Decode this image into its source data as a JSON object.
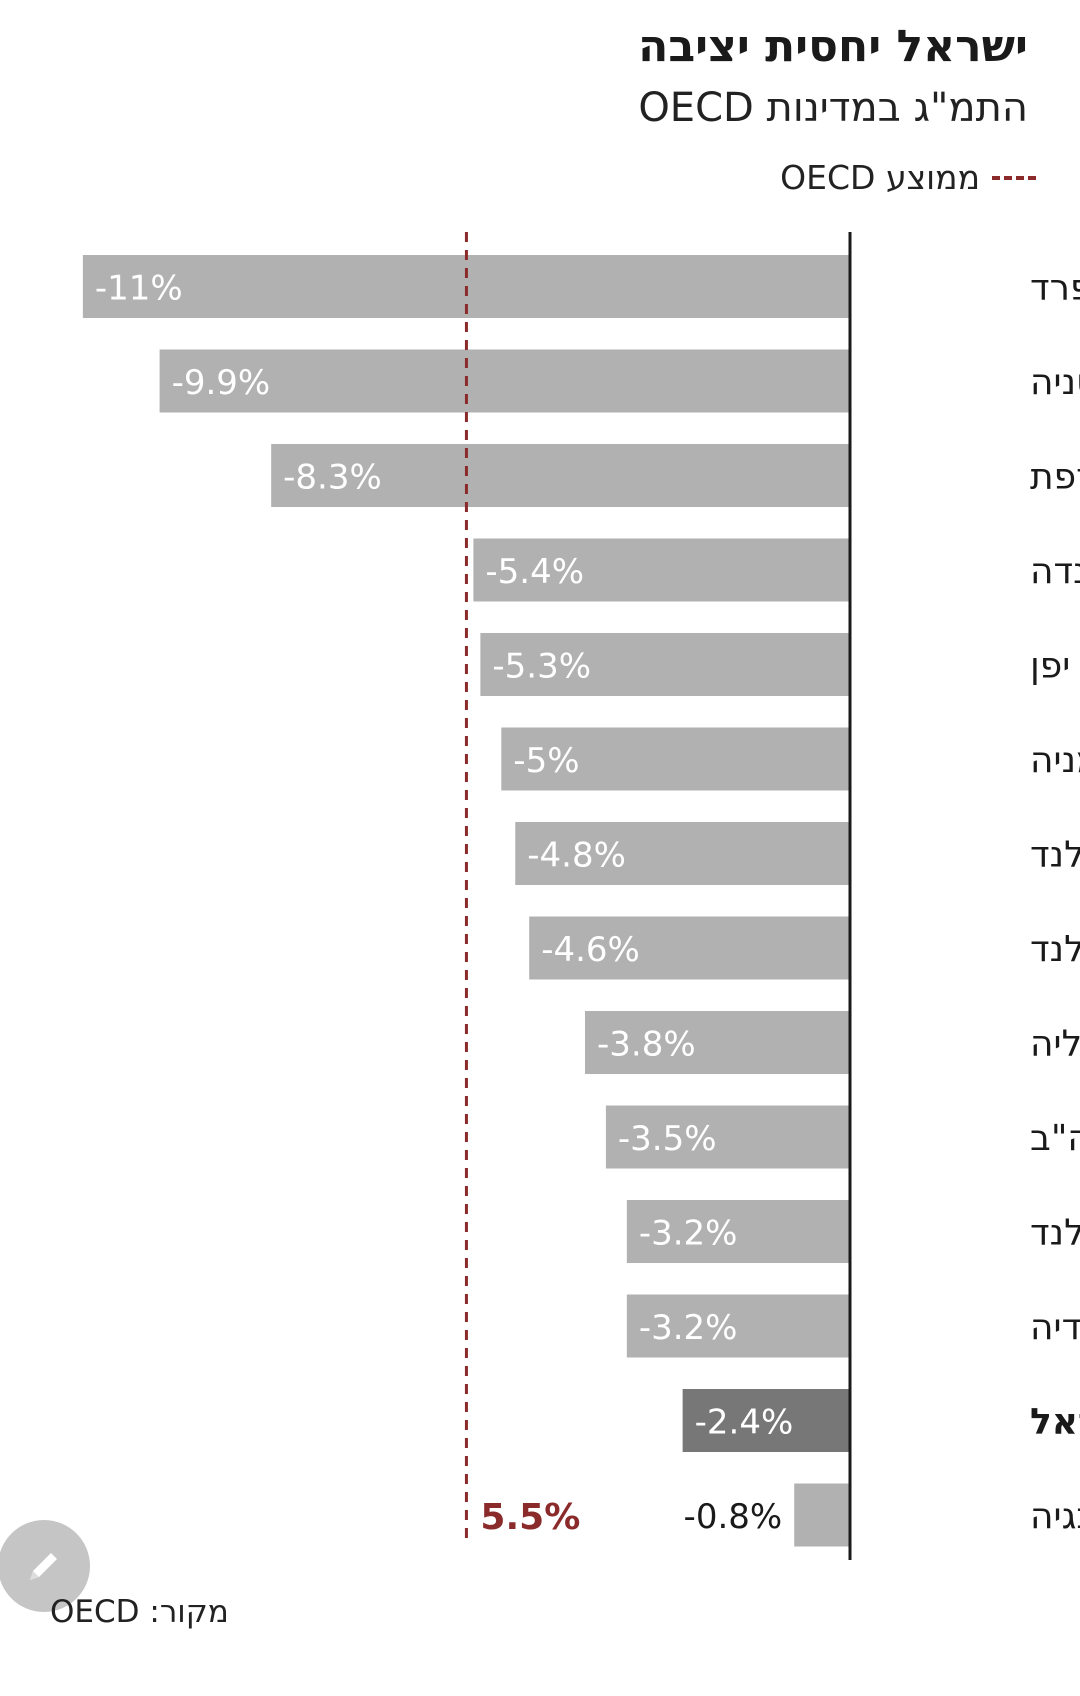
{
  "header": {
    "title": "ישראל יחסית יציבה",
    "subtitle": "התמ\"ג במדינות OECD"
  },
  "legend": {
    "label": "ממוצע OECD"
  },
  "source": "מקור: OECD",
  "colors": {
    "bar": "#b1b1b1",
    "highlight_bar": "#777777",
    "average_line": "#8b2a2a",
    "axis": "#1a1a1a"
  },
  "icons": {
    "edit": "pencil-icon"
  },
  "chart_data": {
    "type": "bar",
    "orientation": "horizontal",
    "categories": [
      "ספרד",
      "בריטניה",
      "צרפת",
      "קנדה",
      "יפן",
      "גרמניה",
      "ניו זילנד",
      "הולנד",
      "אוסטרליה",
      "ארה\"ב",
      "אירלנד",
      "שבדיה",
      "ישראל",
      "נורבגיה"
    ],
    "values": [
      -11,
      -9.9,
      -8.3,
      -5.4,
      -5.3,
      -5,
      -4.8,
      -4.6,
      -3.8,
      -3.5,
      -3.2,
      -3.2,
      -2.4,
      -0.8
    ],
    "value_labels": [
      "-11%",
      "-9.9%",
      "-8.3%",
      "-5.4%",
      "-5.3%",
      "-5%",
      "-4.8%",
      "-4.6%",
      "-3.8%",
      "-3.5%",
      "-3.2%",
      "-3.2%",
      "-2.4%",
      "-0.8%"
    ],
    "highlight": "ישראל",
    "reference_line": {
      "value": -5.5,
      "label": "5.5%"
    },
    "xlim": [
      -11.5,
      0
    ]
  }
}
